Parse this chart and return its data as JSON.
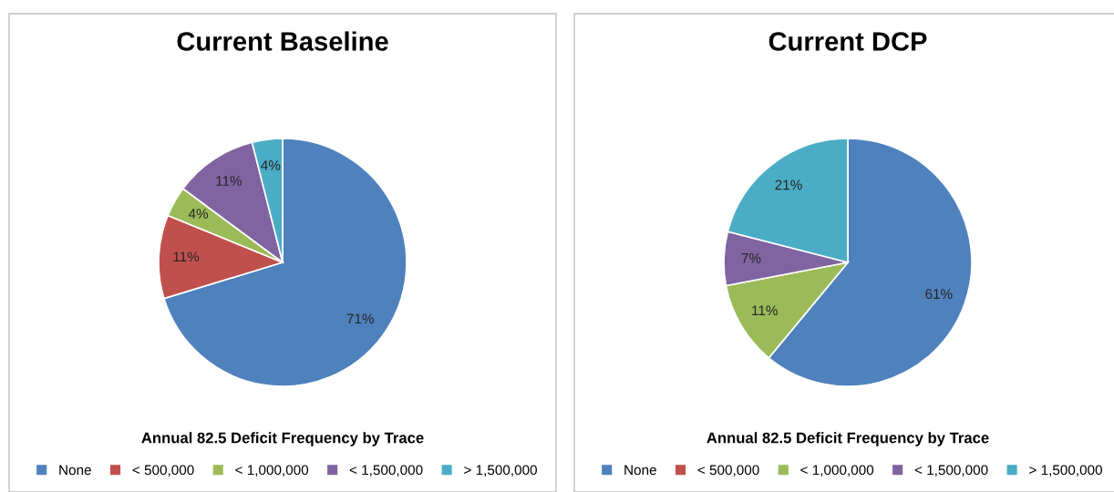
{
  "chart_data": [
    {
      "type": "pie",
      "title": "Current Baseline",
      "subtitle": "Annual 82.5 Deficit Frequency by Trace",
      "categories": [
        "None",
        "< 500,000",
        "< 1,000,000",
        "< 1,500,000",
        "> 1,500,000"
      ],
      "values": [
        71,
        11,
        4,
        11,
        4
      ],
      "value_labels": [
        "71%",
        "11%",
        "4%",
        "11%",
        "4%"
      ],
      "colors": [
        "#4f81bd",
        "#c0504d",
        "#9bbb59",
        "#8064a2",
        "#4bacc6"
      ],
      "legend": "bottom"
    },
    {
      "type": "pie",
      "title": "Current DCP",
      "subtitle": "Annual 82.5 Deficit Frequency by Trace",
      "categories": [
        "None",
        "< 500,000",
        "< 1,000,000",
        "< 1,500,000",
        "> 1,500,000"
      ],
      "values": [
        61,
        0,
        11,
        7,
        21
      ],
      "value_labels": [
        "61%",
        null,
        "11%",
        "7%",
        "21%"
      ],
      "colors": [
        "#4f81bd",
        "#c0504d",
        "#9bbb59",
        "#8064a2",
        "#4bacc6"
      ],
      "legend": "bottom"
    }
  ]
}
